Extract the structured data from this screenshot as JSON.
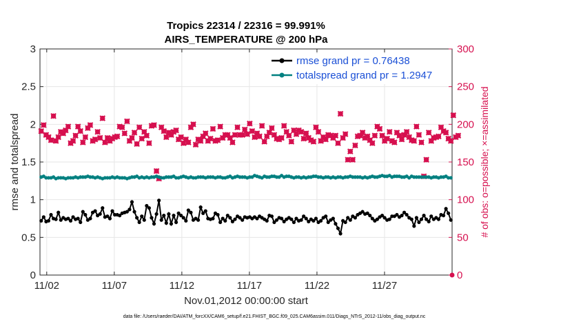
{
  "chart_data": {
    "type": "line",
    "title_line1": "Tropics 22314 / 22316 = 99.991%",
    "title_line2": "AIRS_TEMPERATURE @ 200 hPa",
    "xlabel": "Nov.01,2012 00:00:00 start",
    "ylabel_left": "rmse and totalspread",
    "ylabel_right": "# of obs: o=possible; ×=assimilated",
    "xlim": [
      0.5,
      31.0
    ],
    "ylim_left": [
      0,
      3
    ],
    "ylim_right": [
      0,
      300
    ],
    "x_ticks": [
      1,
      6,
      11,
      16,
      21,
      26
    ],
    "x_tick_labels": [
      "11/02",
      "11/07",
      "11/12",
      "11/17",
      "11/22",
      "11/27"
    ],
    "y_left_ticks": [
      "0",
      "0.5",
      "1",
      "1.5",
      "2",
      "2.5",
      "3"
    ],
    "y_right_ticks": [
      "0",
      "50",
      "100",
      "150",
      "200",
      "250",
      "300"
    ],
    "legend": [
      {
        "label": "rmse grand pr = 0.76438",
        "color": "#000000"
      },
      {
        "label": "totalspread grand pr = 1.2947",
        "color": "#008080"
      }
    ],
    "grid": true,
    "colors": {
      "rmse": "#000000",
      "spread": "#008080",
      "obs": "#d6104f",
      "legend_text": "#1a4fd6"
    },
    "series": [
      {
        "name": "rmse",
        "values": [
          0.72,
          0.77,
          0.71,
          0.72,
          0.8,
          0.75,
          0.74,
          0.83,
          0.73,
          0.76,
          0.74,
          0.75,
          0.72,
          0.77,
          0.74,
          0.75,
          0.7,
          0.84,
          0.8,
          0.73,
          0.75,
          0.83,
          0.85,
          0.79,
          0.81,
          0.89,
          0.77,
          0.78,
          0.75,
          0.85,
          0.8,
          0.8,
          0.79,
          0.82,
          0.83,
          0.84,
          0.87,
          0.97,
          0.84,
          0.76,
          0.7,
          0.78,
          0.73,
          0.92,
          0.89,
          0.76,
          0.68,
          0.81,
          0.99,
          0.73,
          0.79,
          0.69,
          0.81,
          0.68,
          0.79,
          0.7,
          0.82,
          0.79,
          0.76,
          0.72,
          0.86,
          0.83,
          0.73,
          0.75,
          0.73,
          0.9,
          0.82,
          0.85,
          0.75,
          0.74,
          0.75,
          0.82,
          0.8,
          0.7,
          0.75,
          0.72,
          0.79,
          0.76,
          0.71,
          0.74,
          0.78,
          0.76,
          0.73,
          0.77,
          0.76,
          0.77,
          0.75,
          0.77,
          0.75,
          0.78,
          0.76,
          0.74,
          0.72,
          0.79,
          0.78,
          0.7,
          0.73,
          0.76,
          0.75,
          0.71,
          0.74,
          0.76,
          0.74,
          0.7,
          0.75,
          0.72,
          0.73,
          0.78,
          0.75,
          0.71,
          0.74,
          0.72,
          0.75,
          0.7,
          0.72,
          0.76,
          0.78,
          0.7,
          0.73,
          0.75,
          0.68,
          0.62,
          0.55,
          0.72,
          0.7,
          0.76,
          0.73,
          0.78,
          0.76,
          0.8,
          0.82,
          0.84,
          0.81,
          0.82,
          0.79,
          0.75,
          0.72,
          0.74,
          0.77,
          0.79,
          0.76,
          0.73,
          0.74,
          0.78,
          0.78,
          0.8,
          0.77,
          0.79,
          0.83,
          0.8,
          0.76,
          0.74,
          0.65,
          0.76,
          0.7,
          0.74,
          0.79,
          0.74,
          0.71,
          0.78,
          0.74,
          0.76,
          0.74,
          0.8,
          0.79,
          0.88,
          0.82,
          0.73
        ]
      },
      {
        "name": "totalspread",
        "values": [
          1.3,
          1.31,
          1.29,
          1.29,
          1.29,
          1.3,
          1.28,
          1.29,
          1.29,
          1.29,
          1.28,
          1.29,
          1.29,
          1.29,
          1.3,
          1.29,
          1.3,
          1.3,
          1.3,
          1.31,
          1.3,
          1.3,
          1.29,
          1.3,
          1.29,
          1.28,
          1.29,
          1.29,
          1.29,
          1.3,
          1.29,
          1.3,
          1.29,
          1.29,
          1.29,
          1.28,
          1.29,
          1.3,
          1.3,
          1.31,
          1.29,
          1.3,
          1.29,
          1.3,
          1.29,
          1.3,
          1.3,
          1.31,
          1.3,
          1.29,
          1.29,
          1.3,
          1.3,
          1.3,
          1.31,
          1.29,
          1.29,
          1.3,
          1.31,
          1.3,
          1.29,
          1.3,
          1.29,
          1.29,
          1.3,
          1.3,
          1.3,
          1.29,
          1.3,
          1.3,
          1.3,
          1.29,
          1.3,
          1.3,
          1.29,
          1.29,
          1.3,
          1.31,
          1.29,
          1.3,
          1.31,
          1.3,
          1.3,
          1.3,
          1.29,
          1.3,
          1.3,
          1.32,
          1.31,
          1.3,
          1.29,
          1.31,
          1.3,
          1.3,
          1.31,
          1.31,
          1.3,
          1.3,
          1.32,
          1.3,
          1.31,
          1.31,
          1.3,
          1.29,
          1.3,
          1.3,
          1.29,
          1.3,
          1.29,
          1.3,
          1.3,
          1.31,
          1.31,
          1.3,
          1.3,
          1.29,
          1.3,
          1.3,
          1.29,
          1.3,
          1.29,
          1.3,
          1.3,
          1.29,
          1.3,
          1.3,
          1.31,
          1.3,
          1.3,
          1.3,
          1.3,
          1.29,
          1.3,
          1.29,
          1.3,
          1.31,
          1.3,
          1.3,
          1.31,
          1.32,
          1.31,
          1.31,
          1.32,
          1.3,
          1.31,
          1.31,
          1.31,
          1.3,
          1.3,
          1.31,
          1.29,
          1.31,
          1.3,
          1.3,
          1.3,
          1.3,
          1.3,
          1.3,
          1.3,
          1.29,
          1.3,
          1.3,
          1.29,
          1.3,
          1.3,
          1.31,
          1.29,
          1.29
        ]
      },
      {
        "name": "obs_possible",
        "values": [
          191,
          199,
          186,
          183,
          179,
          211,
          178,
          183,
          190,
          188,
          192,
          197,
          175,
          178,
          185,
          197,
          191,
          176,
          183,
          195,
          199,
          178,
          180,
          190,
          182,
          208,
          176,
          182,
          178,
          181,
          183,
          184,
          197,
          196,
          188,
          204,
          178,
          182,
          189,
          174,
          196,
          181,
          190,
          185,
          175,
          198,
          199,
          138,
          128,
          196,
          191,
          183,
          189,
          186,
          190,
          192,
          180,
          183,
          175,
          180,
          176,
          196,
          200,
          173,
          180,
          178,
          184,
          188,
          178,
          181,
          194,
          178,
          179,
          197,
          182,
          186,
          186,
          182,
          176,
          186,
          196,
          186,
          186,
          193,
          187,
          201,
          191,
          183,
          188,
          184,
          198,
          177,
          184,
          189,
          195,
          186,
          181,
          180,
          182,
          198,
          190,
          185,
          177,
          192,
          187,
          192,
          190,
          181,
          188,
          182,
          179,
          177,
          196,
          190,
          178,
          183,
          180,
          186,
          185,
          182,
          185,
          175,
          214,
          182,
          187,
          153,
          164,
          153,
          172,
          184,
          185,
          189,
          182,
          184,
          179,
          175,
          185,
          197,
          194,
          185,
          178,
          181,
          190,
          178,
          176,
          189,
          185,
          180,
          186,
          190,
          183,
          179,
          178,
          197,
          186,
          176,
          131,
          153,
          189,
          178,
          182,
          183,
          184,
          196,
          191,
          189,
          181,
          178,
          212,
          183,
          185
        ]
      },
      {
        "name": "obs_assimilated",
        "values": [
          191,
          199,
          186,
          183,
          179,
          211,
          178,
          183,
          190,
          188,
          192,
          197,
          175,
          178,
          185,
          197,
          191,
          176,
          183,
          195,
          199,
          178,
          180,
          190,
          182,
          208,
          176,
          182,
          178,
          181,
          183,
          184,
          197,
          196,
          188,
          204,
          178,
          182,
          189,
          174,
          196,
          181,
          190,
          185,
          175,
          198,
          199,
          138,
          128,
          196,
          191,
          183,
          189,
          186,
          190,
          192,
          180,
          183,
          175,
          180,
          176,
          196,
          200,
          173,
          180,
          178,
          184,
          188,
          178,
          181,
          194,
          178,
          179,
          197,
          182,
          186,
          186,
          182,
          176,
          186,
          196,
          186,
          186,
          193,
          187,
          201,
          191,
          183,
          188,
          184,
          198,
          177,
          184,
          189,
          195,
          186,
          181,
          180,
          182,
          198,
          190,
          185,
          177,
          192,
          187,
          192,
          190,
          181,
          188,
          182,
          179,
          177,
          196,
          190,
          178,
          183,
          180,
          186,
          185,
          182,
          185,
          175,
          214,
          182,
          187,
          153,
          164,
          153,
          172,
          184,
          185,
          189,
          182,
          184,
          179,
          175,
          185,
          197,
          194,
          185,
          178,
          181,
          190,
          178,
          176,
          189,
          185,
          180,
          186,
          190,
          183,
          179,
          178,
          197,
          186,
          176,
          131,
          153,
          189,
          178,
          182,
          183,
          184,
          196,
          191,
          189,
          181,
          178,
          212,
          183,
          185
        ]
      }
    ]
  },
  "footnote": "data file: /Users/raeder/DAI/ATM_forcXX/CAM6_setup/f.e21.FHIST_BGC.f09_025.CAM6assim.011/Diags_NTrS_2012-11/obs_diag_output.nc"
}
